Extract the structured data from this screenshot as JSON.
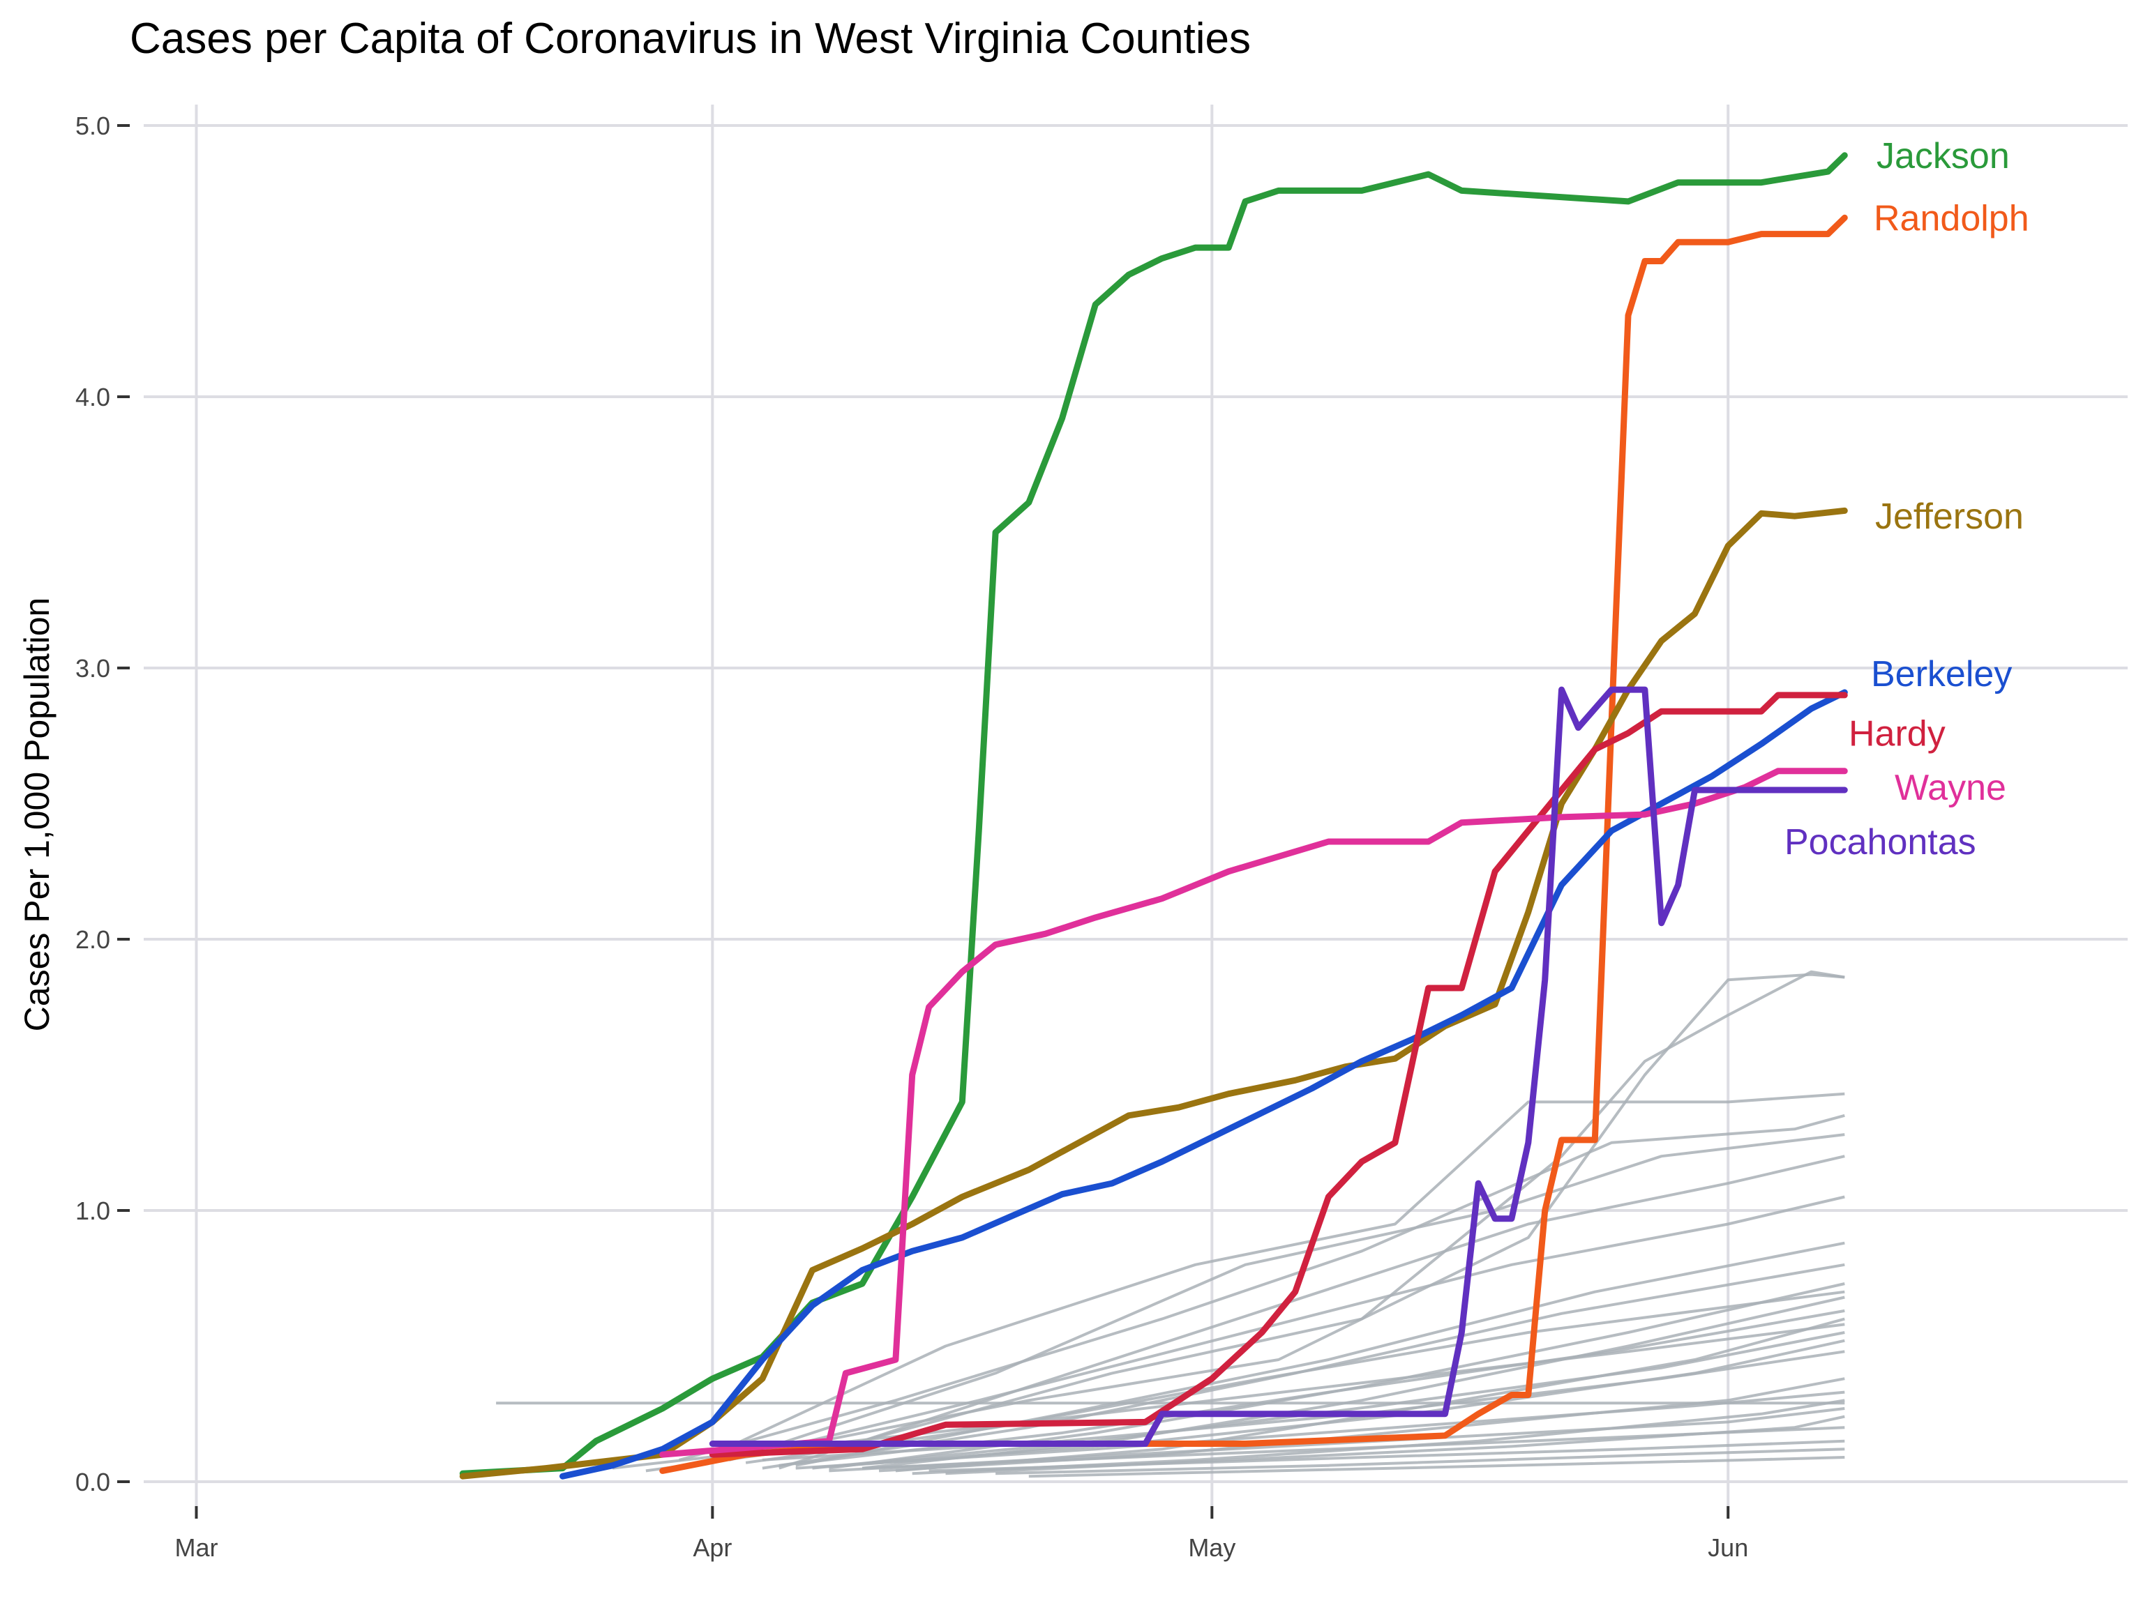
{
  "chart_data": {
    "type": "line",
    "title": "Cases per Capita of Coronavirus in West Virginia Counties",
    "xlabel": "",
    "ylabel": "Cases Per 1,000 Population",
    "ylim": [
      0,
      5
    ],
    "yticks": [
      "0.0",
      "1.0",
      "2.0",
      "3.0",
      "4.0",
      "5.0"
    ],
    "xlim": [
      "2020-02-26",
      "2020-06-25"
    ],
    "xticks": [
      {
        "date": "2020-03-01",
        "label": "Mar"
      },
      {
        "date": "2020-04-01",
        "label": "Apr"
      },
      {
        "date": "2020-05-01",
        "label": "May"
      },
      {
        "date": "2020-06-01",
        "label": "Jun"
      }
    ],
    "grid": true,
    "legend": "direct labels at line ends",
    "colors": {
      "Jackson": "#2a9a3a",
      "Randolph": "#f15a1a",
      "Jefferson": "#9a7410",
      "Berkeley": "#1a4fd0",
      "Hardy": "#d0213f",
      "Wayne": "#e0309a",
      "Pocahontas": "#6030c0",
      "Other counties": "#a9b0b6"
    },
    "series": [
      {
        "name": "Jackson",
        "x": [
          "2020-03-17",
          "2020-03-23",
          "2020-03-25",
          "2020-03-29",
          "2020-04-01",
          "2020-04-04",
          "2020-04-07",
          "2020-04-10",
          "2020-04-13",
          "2020-04-16",
          "2020-04-17",
          "2020-04-18",
          "2020-04-20",
          "2020-04-22",
          "2020-04-24",
          "2020-04-26",
          "2020-04-28",
          "2020-04-30",
          "2020-05-02",
          "2020-05-03",
          "2020-05-05",
          "2020-05-10",
          "2020-05-14",
          "2020-05-16",
          "2020-05-26",
          "2020-05-29",
          "2020-06-03",
          "2020-06-07",
          "2020-06-08"
        ],
        "values": [
          0.03,
          0.05,
          0.15,
          0.27,
          0.38,
          0.46,
          0.66,
          0.73,
          1.05,
          1.4,
          2.4,
          3.5,
          3.61,
          3.92,
          4.34,
          4.45,
          4.51,
          4.55,
          4.55,
          4.72,
          4.76,
          4.76,
          4.82,
          4.76,
          4.72,
          4.79,
          4.79,
          4.83,
          4.89
        ]
      },
      {
        "name": "Randolph",
        "x": [
          "2020-03-29",
          "2020-04-03",
          "2020-04-10",
          "2020-05-03",
          "2020-05-15",
          "2020-05-17",
          "2020-05-19",
          "2020-05-20",
          "2020-05-21",
          "2020-05-22",
          "2020-05-24",
          "2020-05-25",
          "2020-05-26",
          "2020-05-27",
          "2020-05-28",
          "2020-05-29",
          "2020-06-01",
          "2020-06-03",
          "2020-06-07",
          "2020-06-08"
        ],
        "values": [
          0.04,
          0.1,
          0.14,
          0.14,
          0.17,
          0.25,
          0.32,
          0.32,
          1.0,
          1.26,
          1.26,
          2.8,
          4.3,
          4.5,
          4.5,
          4.57,
          4.57,
          4.6,
          4.6,
          4.66
        ]
      },
      {
        "name": "Jefferson",
        "x": [
          "2020-03-17",
          "2020-03-22",
          "2020-03-29",
          "2020-04-01",
          "2020-04-04",
          "2020-04-07",
          "2020-04-10",
          "2020-04-13",
          "2020-04-16",
          "2020-04-20",
          "2020-04-23",
          "2020-04-26",
          "2020-04-29",
          "2020-05-02",
          "2020-05-06",
          "2020-05-09",
          "2020-05-12",
          "2020-05-15",
          "2020-05-18",
          "2020-05-20",
          "2020-05-22",
          "2020-05-24",
          "2020-05-26",
          "2020-05-28",
          "2020-05-30",
          "2020-06-01",
          "2020-06-03",
          "2020-06-05",
          "2020-06-08"
        ],
        "values": [
          0.02,
          0.05,
          0.1,
          0.22,
          0.38,
          0.78,
          0.86,
          0.95,
          1.05,
          1.15,
          1.25,
          1.35,
          1.38,
          1.43,
          1.48,
          1.53,
          1.56,
          1.68,
          1.76,
          2.1,
          2.5,
          2.7,
          2.92,
          3.1,
          3.2,
          3.45,
          3.57,
          3.56,
          3.58
        ]
      },
      {
        "name": "Berkeley",
        "x": [
          "2020-03-23",
          "2020-03-26",
          "2020-03-29",
          "2020-04-01",
          "2020-04-04",
          "2020-04-07",
          "2020-04-10",
          "2020-04-13",
          "2020-04-16",
          "2020-04-19",
          "2020-04-22",
          "2020-04-25",
          "2020-04-28",
          "2020-05-01",
          "2020-05-04",
          "2020-05-07",
          "2020-05-10",
          "2020-05-13",
          "2020-05-16",
          "2020-05-19",
          "2020-05-22",
          "2020-05-25",
          "2020-05-28",
          "2020-05-31",
          "2020-06-03",
          "2020-06-06",
          "2020-06-08"
        ],
        "values": [
          0.02,
          0.06,
          0.12,
          0.22,
          0.45,
          0.65,
          0.78,
          0.85,
          0.9,
          0.98,
          1.06,
          1.1,
          1.18,
          1.27,
          1.36,
          1.45,
          1.55,
          1.63,
          1.72,
          1.82,
          2.2,
          2.4,
          2.5,
          2.6,
          2.72,
          2.85,
          2.91
        ]
      },
      {
        "name": "Hardy",
        "x": [
          "2020-04-01",
          "2020-04-10",
          "2020-04-15",
          "2020-04-27",
          "2020-05-01",
          "2020-05-04",
          "2020-05-06",
          "2020-05-08",
          "2020-05-10",
          "2020-05-12",
          "2020-05-14",
          "2020-05-16",
          "2020-05-18",
          "2020-05-20",
          "2020-05-22",
          "2020-05-24",
          "2020-05-26",
          "2020-05-28",
          "2020-06-03",
          "2020-06-04",
          "2020-06-08"
        ],
        "values": [
          0.1,
          0.12,
          0.21,
          0.22,
          0.38,
          0.55,
          0.7,
          1.05,
          1.18,
          1.25,
          1.82,
          1.82,
          2.25,
          2.4,
          2.55,
          2.7,
          2.76,
          2.84,
          2.84,
          2.9,
          2.9
        ]
      },
      {
        "name": "Wayne",
        "x": [
          "2020-03-29",
          "2020-04-08",
          "2020-04-09",
          "2020-04-12",
          "2020-04-13",
          "2020-04-14",
          "2020-04-16",
          "2020-04-18",
          "2020-04-21",
          "2020-04-24",
          "2020-04-28",
          "2020-05-02",
          "2020-05-08",
          "2020-05-14",
          "2020-05-16",
          "2020-05-22",
          "2020-05-27",
          "2020-05-30",
          "2020-06-02",
          "2020-06-04",
          "2020-06-08"
        ],
        "values": [
          0.1,
          0.15,
          0.4,
          0.45,
          1.5,
          1.75,
          1.88,
          1.98,
          2.02,
          2.08,
          2.15,
          2.25,
          2.36,
          2.36,
          2.43,
          2.45,
          2.46,
          2.5,
          2.56,
          2.62,
          2.62
        ]
      },
      {
        "name": "Pocahontas",
        "x": [
          "2020-04-01",
          "2020-04-27",
          "2020-04-28",
          "2020-05-15",
          "2020-05-16",
          "2020-05-17",
          "2020-05-18",
          "2020-05-19",
          "2020-05-20",
          "2020-05-21",
          "2020-05-22",
          "2020-05-23",
          "2020-05-25",
          "2020-05-27",
          "2020-05-28",
          "2020-05-29",
          "2020-05-30",
          "2020-06-01",
          "2020-06-08"
        ],
        "values": [
          0.14,
          0.14,
          0.25,
          0.25,
          0.55,
          1.1,
          0.97,
          0.97,
          1.25,
          1.85,
          2.92,
          2.78,
          2.92,
          2.92,
          2.06,
          2.2,
          2.55,
          2.55,
          2.55
        ]
      }
    ],
    "labels": [
      {
        "name": "Jackson",
        "text": "Jackson",
        "value": 4.89
      },
      {
        "name": "Randolph",
        "text": "Randolph",
        "value": 4.66
      },
      {
        "name": "Jefferson",
        "text": "Jefferson",
        "value": 3.56
      },
      {
        "name": "Berkeley",
        "text": "Berkeley",
        "value": 2.98
      },
      {
        "name": "Hardy",
        "text": "Hardy",
        "value": 2.76
      },
      {
        "name": "Wayne",
        "text": "Wayne",
        "value": 2.56
      },
      {
        "name": "Pocahontas",
        "text": "Pocahontas",
        "value": 2.36
      }
    ],
    "background_series": [
      {
        "x": [
          "2020-03-19",
          "2020-06-08"
        ],
        "values": [
          0.29,
          0.29
        ]
      },
      {
        "x": [
          "2020-03-26",
          "2020-04-05",
          "2020-04-20",
          "2020-05-05",
          "2020-05-20",
          "2020-05-27",
          "2020-06-01",
          "2020-06-06",
          "2020-06-08"
        ],
        "values": [
          0.05,
          0.12,
          0.3,
          0.45,
          0.9,
          1.5,
          1.85,
          1.87,
          1.86
        ]
      },
      {
        "x": [
          "2020-03-28",
          "2020-04-10",
          "2020-04-25",
          "2020-05-10",
          "2020-05-22",
          "2020-05-27",
          "2020-06-01",
          "2020-06-06",
          "2020-06-08"
        ],
        "values": [
          0.04,
          0.15,
          0.4,
          0.6,
          1.2,
          1.55,
          1.72,
          1.88,
          1.86
        ]
      },
      {
        "x": [
          "2020-04-01",
          "2020-04-15",
          "2020-04-30",
          "2020-05-12",
          "2020-05-20",
          "2020-06-01",
          "2020-06-08"
        ],
        "values": [
          0.1,
          0.5,
          0.8,
          0.95,
          1.4,
          1.4,
          1.43
        ]
      },
      {
        "x": [
          "2020-03-30",
          "2020-04-12",
          "2020-04-28",
          "2020-05-10",
          "2020-05-25",
          "2020-06-05",
          "2020-06-08"
        ],
        "values": [
          0.08,
          0.3,
          0.6,
          0.85,
          1.25,
          1.3,
          1.35
        ]
      },
      {
        "x": [
          "2020-04-03",
          "2020-04-18",
          "2020-05-03",
          "2020-05-18",
          "2020-05-28",
          "2020-06-08"
        ],
        "values": [
          0.1,
          0.4,
          0.8,
          1.0,
          1.2,
          1.28
        ]
      },
      {
        "x": [
          "2020-04-05",
          "2020-04-20",
          "2020-05-05",
          "2020-05-20",
          "2020-06-01",
          "2020-06-08"
        ],
        "values": [
          0.05,
          0.35,
          0.65,
          0.95,
          1.1,
          1.2
        ]
      },
      {
        "x": [
          "2020-04-02",
          "2020-04-17",
          "2020-05-03",
          "2020-05-19",
          "2020-06-01",
          "2020-06-08"
        ],
        "values": [
          0.08,
          0.3,
          0.55,
          0.8,
          0.95,
          1.05
        ]
      },
      {
        "x": [
          "2020-04-06",
          "2020-04-22",
          "2020-05-08",
          "2020-05-24",
          "2020-06-08"
        ],
        "values": [
          0.06,
          0.25,
          0.45,
          0.7,
          0.88
        ]
      },
      {
        "x": [
          "2020-04-04",
          "2020-04-20",
          "2020-05-06",
          "2020-05-22",
          "2020-06-08"
        ],
        "values": [
          0.05,
          0.2,
          0.4,
          0.62,
          0.8
        ]
      },
      {
        "x": [
          "2020-04-08",
          "2020-04-24",
          "2020-05-10",
          "2020-05-26",
          "2020-06-08"
        ],
        "values": [
          0.05,
          0.18,
          0.35,
          0.55,
          0.73
        ]
      },
      {
        "x": [
          "2020-04-03",
          "2020-04-18",
          "2020-05-04",
          "2020-05-20",
          "2020-06-08"
        ],
        "values": [
          0.07,
          0.2,
          0.38,
          0.55,
          0.7
        ]
      },
      {
        "x": [
          "2020-04-10",
          "2020-04-25",
          "2020-05-10",
          "2020-05-26",
          "2020-06-08"
        ],
        "values": [
          0.05,
          0.15,
          0.3,
          0.5,
          0.68
        ]
      },
      {
        "x": [
          "2020-04-05",
          "2020-04-22",
          "2020-05-08",
          "2020-05-25",
          "2020-06-08"
        ],
        "values": [
          0.06,
          0.18,
          0.33,
          0.48,
          0.63
        ]
      },
      {
        "x": [
          "2020-04-12",
          "2020-04-28",
          "2020-05-14",
          "2020-05-30",
          "2020-06-08"
        ],
        "values": [
          0.04,
          0.12,
          0.28,
          0.45,
          0.6
        ]
      },
      {
        "x": [
          "2020-04-02",
          "2020-04-20",
          "2020-05-08",
          "2020-05-26",
          "2020-06-08"
        ],
        "values": [
          0.1,
          0.22,
          0.35,
          0.48,
          0.58
        ]
      },
      {
        "x": [
          "2020-04-07",
          "2020-04-24",
          "2020-05-11",
          "2020-05-28",
          "2020-06-08"
        ],
        "values": [
          0.05,
          0.15,
          0.28,
          0.42,
          0.55
        ]
      },
      {
        "x": [
          "2020-04-09",
          "2020-04-26",
          "2020-05-13",
          "2020-05-30",
          "2020-06-08"
        ],
        "values": [
          0.06,
          0.14,
          0.25,
          0.4,
          0.52
        ]
      },
      {
        "x": [
          "2020-04-04",
          "2020-04-22",
          "2020-05-10",
          "2020-05-28",
          "2020-06-08"
        ],
        "values": [
          0.08,
          0.15,
          0.25,
          0.38,
          0.48
        ]
      },
      {
        "x": [
          "2020-04-11",
          "2020-04-28",
          "2020-05-15",
          "2020-06-01",
          "2020-06-08"
        ],
        "values": [
          0.04,
          0.1,
          0.2,
          0.3,
          0.38
        ]
      },
      {
        "x": [
          "2020-04-06",
          "2020-04-24",
          "2020-05-12",
          "2020-05-30",
          "2020-06-08"
        ],
        "values": [
          0.05,
          0.12,
          0.2,
          0.28,
          0.33
        ]
      },
      {
        "x": [
          "2020-04-13",
          "2020-04-30",
          "2020-05-17",
          "2020-06-03",
          "2020-06-08"
        ],
        "values": [
          0.03,
          0.08,
          0.15,
          0.25,
          0.3
        ]
      },
      {
        "x": [
          "2020-04-08",
          "2020-04-26",
          "2020-05-14",
          "2020-06-01",
          "2020-06-08"
        ],
        "values": [
          0.04,
          0.1,
          0.16,
          0.22,
          0.27
        ]
      },
      {
        "x": [
          "2020-04-15",
          "2020-05-02",
          "2020-05-19",
          "2020-06-05",
          "2020-06-08"
        ],
        "values": [
          0.03,
          0.08,
          0.13,
          0.2,
          0.24
        ]
      },
      {
        "x": [
          "2020-04-10",
          "2020-04-30",
          "2020-05-20",
          "2020-06-08"
        ],
        "values": [
          0.05,
          0.1,
          0.15,
          0.2
        ]
      },
      {
        "x": [
          "2020-04-14",
          "2020-05-05",
          "2020-05-26",
          "2020-06-08"
        ],
        "values": [
          0.04,
          0.08,
          0.12,
          0.15
        ]
      },
      {
        "x": [
          "2020-04-18",
          "2020-05-08",
          "2020-05-28",
          "2020-06-08"
        ],
        "values": [
          0.03,
          0.06,
          0.1,
          0.12
        ]
      },
      {
        "x": [
          "2020-04-20",
          "2020-05-12",
          "2020-06-02",
          "2020-06-08"
        ],
        "values": [
          0.02,
          0.05,
          0.08,
          0.09
        ]
      }
    ]
  }
}
